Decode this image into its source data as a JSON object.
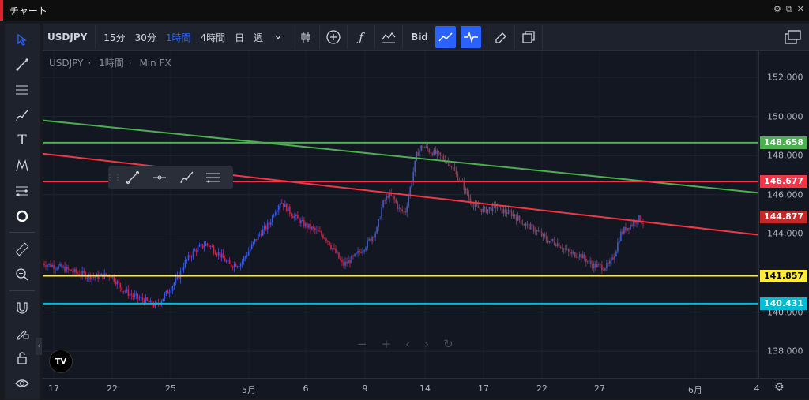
{
  "window": {
    "title": "チャート",
    "controls": [
      "⚙",
      "⧉",
      "✕"
    ]
  },
  "toolbar": {
    "symbol": "USDJPY",
    "intervals": [
      "15分",
      "30分",
      "1時間",
      "4時間",
      "日",
      "週"
    ],
    "active_interval": "1時間",
    "price_type": "Bid"
  },
  "legend": {
    "symbol": "USDJPY",
    "interval": "1時間",
    "source": "Min FX"
  },
  "chart_data": {
    "type": "candlestick",
    "symbol": "USDJPY",
    "interval": "1時間",
    "y_ticks": [
      152.0,
      150.0,
      148.0,
      146.0,
      144.0,
      140.0,
      138.0
    ],
    "y_tick_labels": [
      "152.000",
      "150.000",
      "148.000",
      "146.000",
      "144.000",
      "140.000",
      "138.000"
    ],
    "x_ticks": [
      "17",
      "22",
      "25",
      "5月",
      "6",
      "9",
      "14",
      "17",
      "22",
      "27",
      "6月",
      "4"
    ],
    "price_lines": [
      {
        "value": 148.658,
        "label": "148.658",
        "color": "#4caf50"
      },
      {
        "value": 146.677,
        "label": "146.677",
        "color": "#f23645"
      },
      {
        "value": 144.877,
        "label": "144.877",
        "color": "#c62828"
      },
      {
        "value": 141.857,
        "label": "141.857",
        "color": "#ffeb3b"
      },
      {
        "value": 140.431,
        "label": "140.431",
        "color": "#00bcd4"
      }
    ],
    "trend_lines": [
      {
        "name": "green-trendline",
        "color": "#4caf50"
      },
      {
        "name": "red-trendline",
        "color": "#f23645"
      }
    ],
    "price_path": [
      [
        0,
        142.5
      ],
      [
        3,
        142.3
      ],
      [
        6,
        142.0
      ],
      [
        9,
        141.8
      ],
      [
        12,
        141.9
      ],
      [
        14,
        141.2
      ],
      [
        16,
        140.8
      ],
      [
        18,
        140.6
      ],
      [
        20,
        140.3
      ],
      [
        22,
        141.0
      ],
      [
        24,
        141.8
      ],
      [
        25,
        142.5
      ],
      [
        27,
        143.2
      ],
      [
        29,
        143.5
      ],
      [
        31,
        143.0
      ],
      [
        33,
        142.4
      ],
      [
        35,
        142.5
      ],
      [
        37,
        143.4
      ],
      [
        38,
        143.9
      ],
      [
        40,
        144.5
      ],
      [
        41,
        145.2
      ],
      [
        42,
        145.7
      ],
      [
        44,
        145.0
      ],
      [
        46,
        144.5
      ],
      [
        48,
        144.2
      ],
      [
        50,
        143.8
      ],
      [
        52,
        142.9
      ],
      [
        53,
        142.4
      ],
      [
        55,
        142.8
      ],
      [
        57,
        143.4
      ],
      [
        59,
        144.2
      ],
      [
        60,
        145.5
      ],
      [
        61,
        146.0
      ],
      [
        62,
        145.8
      ],
      [
        63,
        145.2
      ],
      [
        64,
        145.1
      ],
      [
        65,
        146.5
      ],
      [
        66,
        148.0
      ],
      [
        67,
        148.5
      ],
      [
        68,
        148.3
      ],
      [
        70,
        148.0
      ],
      [
        72,
        147.6
      ],
      [
        73,
        147.0
      ],
      [
        74,
        146.6
      ],
      [
        75,
        146.0
      ],
      [
        76,
        145.4
      ],
      [
        78,
        145.2
      ],
      [
        80,
        145.4
      ],
      [
        81,
        145.2
      ],
      [
        83,
        145.0
      ],
      [
        85,
        144.5
      ],
      [
        87,
        144.2
      ],
      [
        89,
        143.7
      ],
      [
        91,
        143.5
      ],
      [
        93,
        143.0
      ],
      [
        95,
        142.9
      ],
      [
        97,
        142.4
      ],
      [
        99,
        142.3
      ],
      [
        100,
        142.4
      ],
      [
        101,
        143.0
      ],
      [
        102,
        144.0
      ],
      [
        103,
        144.3
      ],
      [
        104,
        144.5
      ],
      [
        105,
        144.8
      ],
      [
        106,
        144.6
      ]
    ]
  }
}
